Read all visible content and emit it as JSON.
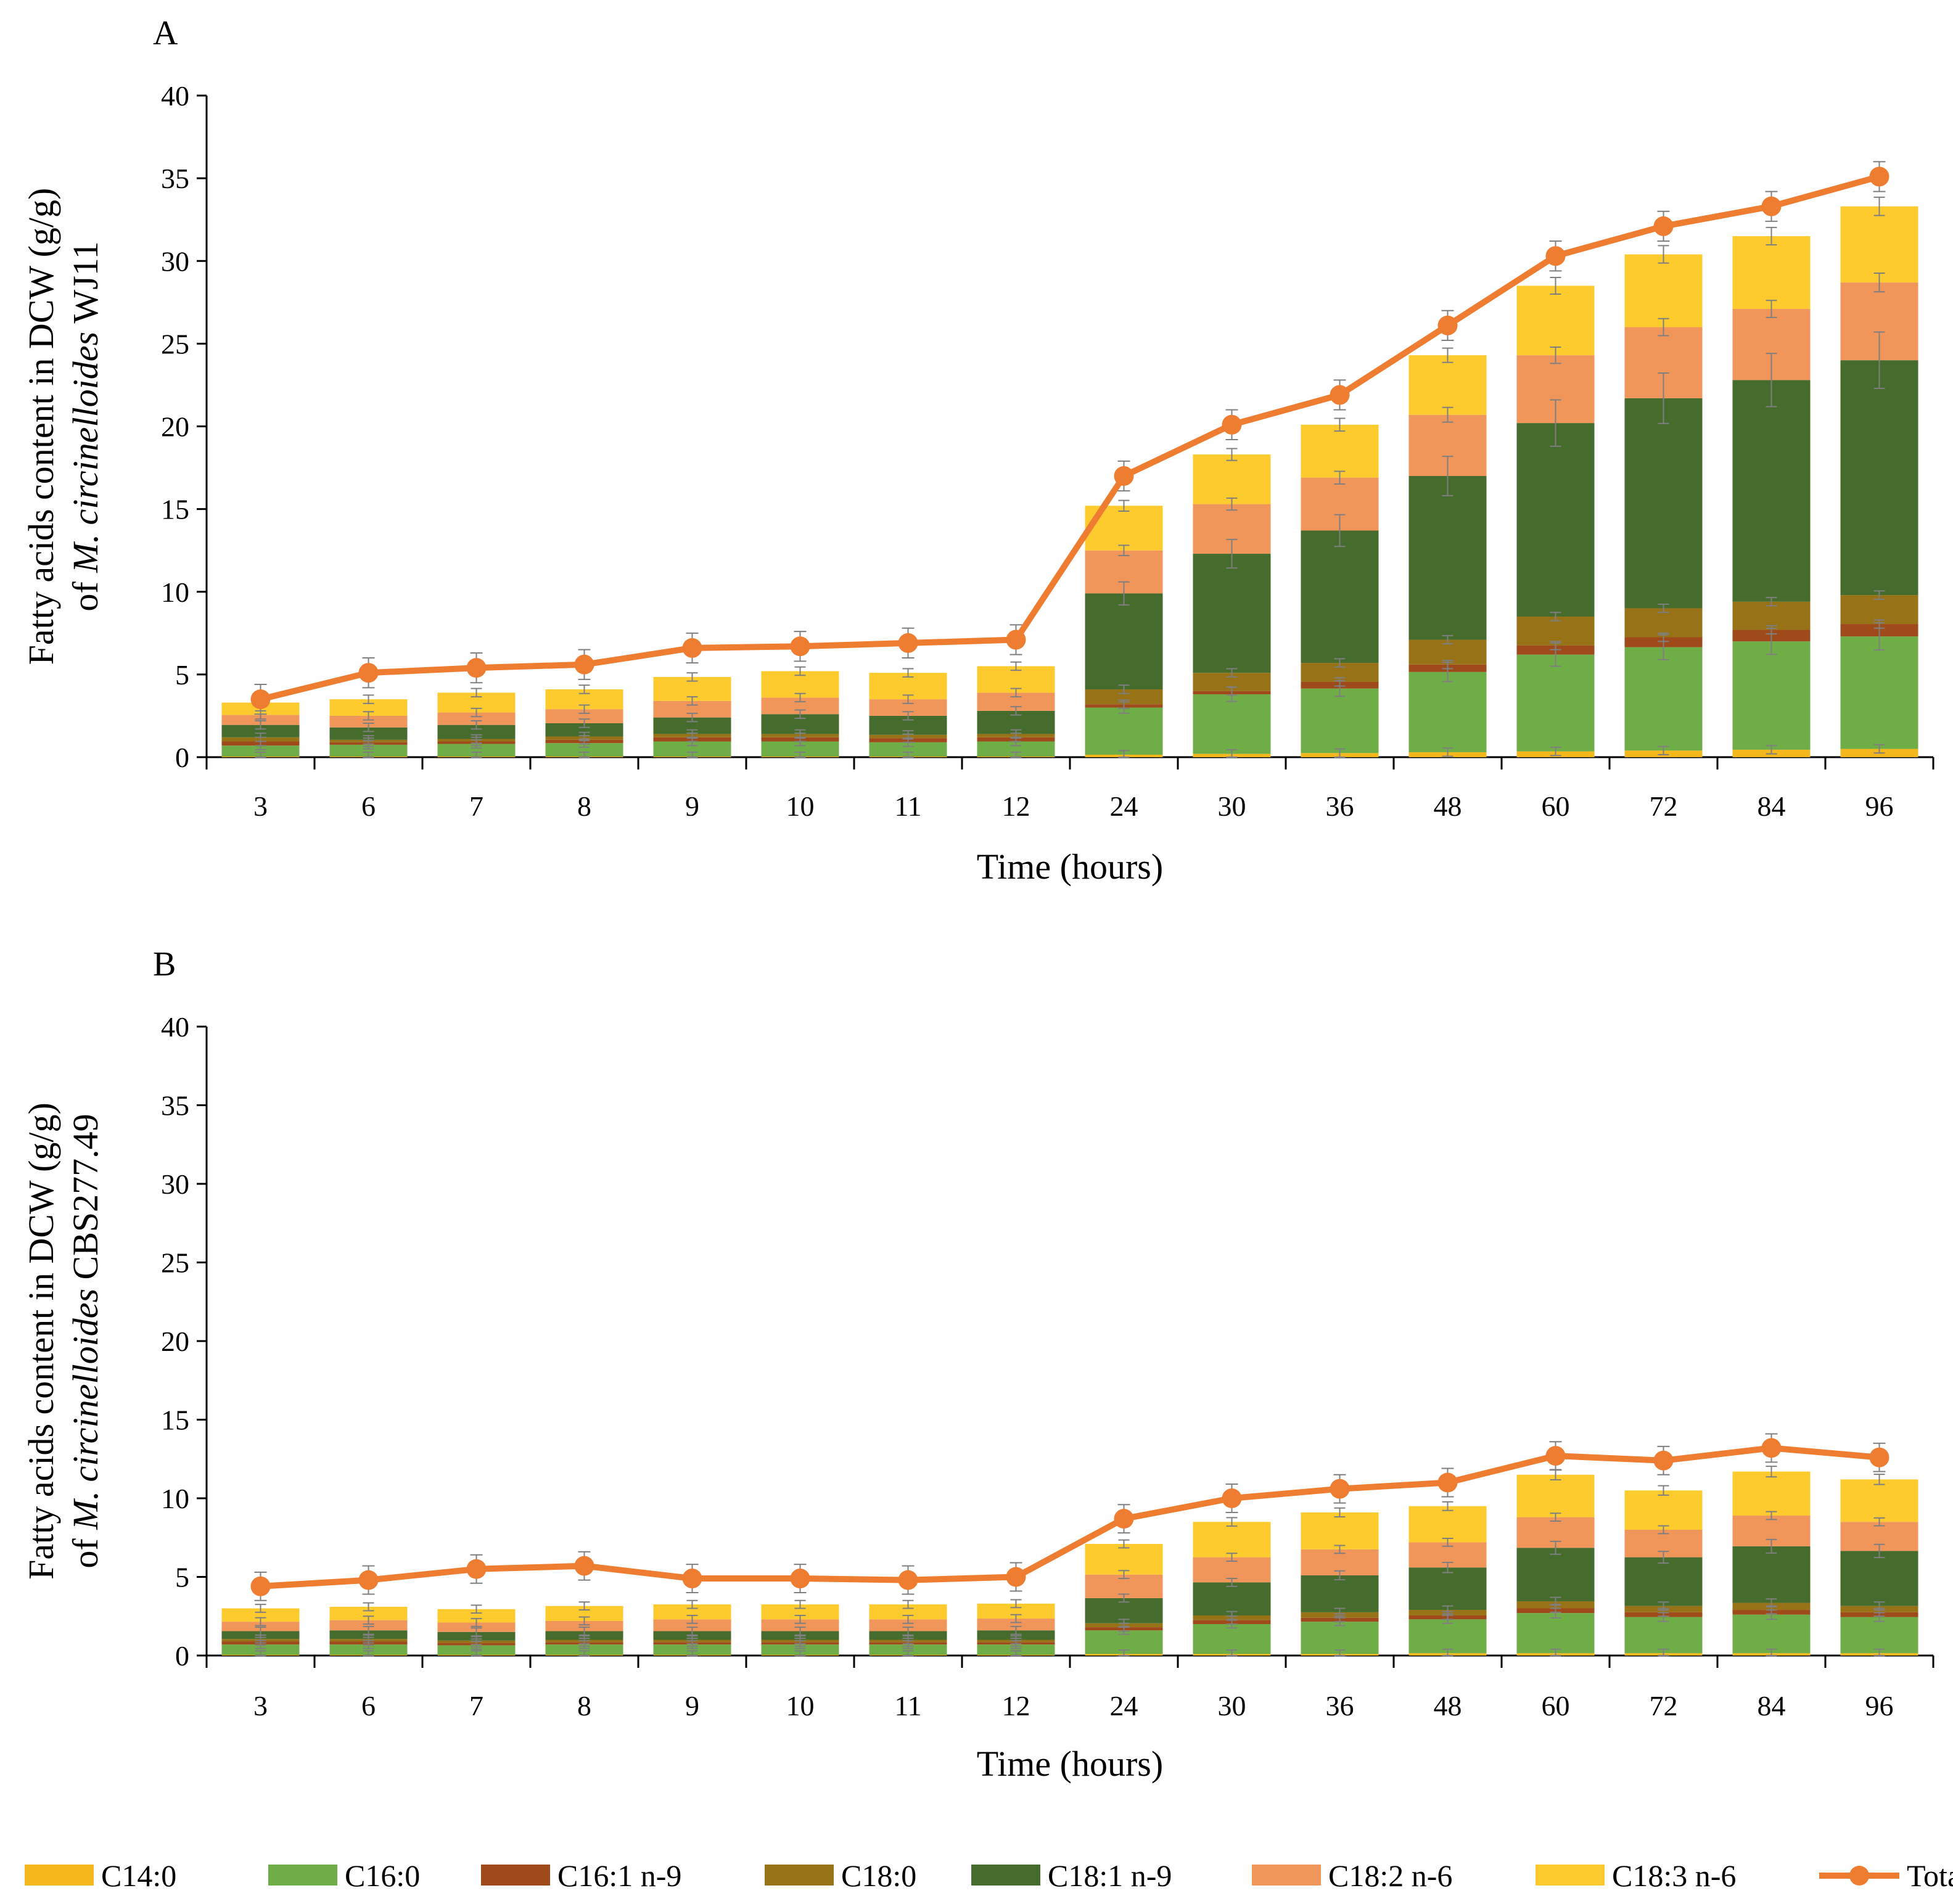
{
  "legend": [
    {
      "key": "c14",
      "label": "C14:0",
      "color": "#f4b71c",
      "kind": "bar"
    },
    {
      "key": "c16",
      "label": "C16:0",
      "color": "#6fad47",
      "kind": "bar"
    },
    {
      "key": "c161",
      "label": "C16:1 n-9",
      "color": "#9e4a1b",
      "kind": "bar"
    },
    {
      "key": "c18",
      "label": "C18:0",
      "color": "#977216",
      "kind": "bar"
    },
    {
      "key": "c181",
      "label": "C18:1 n-9",
      "color": "#456c2c",
      "kind": "bar"
    },
    {
      "key": "c182",
      "label": "C18:2 n-6",
      "color": "#f1965b",
      "kind": "bar"
    },
    {
      "key": "c183",
      "label": "C18:3 n-6",
      "color": "#fecb2f",
      "kind": "bar"
    },
    {
      "key": "total",
      "label": "Total fatty acids",
      "color": "#ee7d31",
      "kind": "line"
    }
  ],
  "chart_data": [
    {
      "panel": "A",
      "type": "bar",
      "stacked": true,
      "title": "",
      "ylabel_prefix": "Fatty acids content in DCW (g/g)",
      "ylabel_of": "of ",
      "ylabel_italic": "M. circinelloides",
      "ylabel_strain": " WJ11",
      "xlabel": "Time (hours)",
      "ylim": [
        0,
        40
      ],
      "yticks": [
        0,
        5,
        10,
        15,
        20,
        25,
        30,
        35,
        40
      ],
      "categories": [
        "3",
        "6",
        "7",
        "8",
        "9",
        "10",
        "11",
        "12",
        "24",
        "30",
        "36",
        "48",
        "60",
        "72",
        "84",
        "96"
      ],
      "series": [
        {
          "name": "C14:0",
          "values": [
            0.05,
            0.05,
            0.05,
            0.05,
            0.05,
            0.05,
            0.05,
            0.05,
            0.15,
            0.2,
            0.25,
            0.3,
            0.35,
            0.4,
            0.45,
            0.5
          ]
        },
        {
          "name": "C16:0",
          "values": [
            0.65,
            0.7,
            0.75,
            0.8,
            0.9,
            0.9,
            0.85,
            0.9,
            2.85,
            3.6,
            3.9,
            4.85,
            5.85,
            6.25,
            6.55,
            6.8
          ]
        },
        {
          "name": "C16:1 n-9",
          "values": [
            0.25,
            0.15,
            0.15,
            0.2,
            0.25,
            0.25,
            0.25,
            0.25,
            0.2,
            0.2,
            0.4,
            0.45,
            0.55,
            0.6,
            0.7,
            0.75
          ]
        },
        {
          "name": "C18:0",
          "values": [
            0.25,
            0.15,
            0.15,
            0.2,
            0.2,
            0.2,
            0.2,
            0.2,
            0.9,
            1.1,
            1.15,
            1.5,
            1.75,
            1.75,
            1.7,
            1.75
          ]
        },
        {
          "name": "C18:1 n-9",
          "values": [
            0.75,
            0.75,
            0.85,
            0.8,
            1.0,
            1.2,
            1.15,
            1.4,
            5.8,
            7.2,
            8.0,
            9.9,
            11.7,
            12.7,
            13.4,
            14.2
          ]
        },
        {
          "name": "C18:2 n-6",
          "values": [
            0.6,
            0.7,
            0.75,
            0.85,
            1.0,
            1.0,
            1.0,
            1.1,
            2.6,
            3.0,
            3.2,
            3.7,
            4.1,
            4.3,
            4.3,
            4.7
          ]
        },
        {
          "name": "C18:3 n-6",
          "values": [
            0.75,
            1.0,
            1.2,
            1.2,
            1.45,
            1.6,
            1.6,
            1.6,
            2.7,
            3.0,
            3.2,
            3.6,
            4.2,
            4.4,
            4.4,
            4.6
          ]
        }
      ],
      "line": {
        "name": "Total fatty acids",
        "values": [
          3.5,
          5.1,
          5.4,
          5.6,
          6.6,
          6.7,
          6.9,
          7.1,
          17.0,
          20.1,
          21.9,
          26.1,
          30.3,
          32.1,
          33.3,
          35.1
        ]
      }
    },
    {
      "panel": "B",
      "type": "bar",
      "stacked": true,
      "title": "",
      "ylabel_prefix": "Fatty acids content in DCW (g/g)",
      "ylabel_of": "of ",
      "ylabel_italic": "M. circinelloides",
      "ylabel_strain": " CBS277.49",
      "xlabel": "Time (hours)",
      "ylim": [
        0,
        40
      ],
      "yticks": [
        0,
        5,
        10,
        15,
        20,
        25,
        30,
        35,
        40
      ],
      "categories": [
        "3",
        "6",
        "7",
        "8",
        "9",
        "10",
        "11",
        "12",
        "24",
        "30",
        "36",
        "48",
        "60",
        "72",
        "84",
        "96"
      ],
      "series": [
        {
          "name": "C14:0",
          "values": [
            0.05,
            0.05,
            0.05,
            0.05,
            0.05,
            0.05,
            0.05,
            0.05,
            0.1,
            0.1,
            0.1,
            0.15,
            0.15,
            0.15,
            0.15,
            0.15
          ]
        },
        {
          "name": "C16:0",
          "values": [
            0.65,
            0.65,
            0.6,
            0.65,
            0.65,
            0.65,
            0.65,
            0.65,
            1.5,
            1.9,
            2.05,
            2.15,
            2.55,
            2.3,
            2.45,
            2.3
          ]
        },
        {
          "name": "C16:1 n-9",
          "values": [
            0.2,
            0.2,
            0.15,
            0.15,
            0.15,
            0.15,
            0.15,
            0.15,
            0.2,
            0.25,
            0.25,
            0.25,
            0.3,
            0.3,
            0.3,
            0.3
          ]
        },
        {
          "name": "C18:0",
          "values": [
            0.15,
            0.15,
            0.15,
            0.15,
            0.15,
            0.15,
            0.15,
            0.15,
            0.25,
            0.3,
            0.35,
            0.35,
            0.45,
            0.4,
            0.45,
            0.4
          ]
        },
        {
          "name": "C18:1 n-9",
          "values": [
            0.5,
            0.55,
            0.55,
            0.55,
            0.55,
            0.55,
            0.55,
            0.6,
            1.6,
            2.1,
            2.35,
            2.7,
            3.4,
            3.1,
            3.6,
            3.5
          ]
        },
        {
          "name": "C18:2 n-6",
          "values": [
            0.6,
            0.65,
            0.6,
            0.65,
            0.75,
            0.75,
            0.75,
            0.75,
            1.5,
            1.6,
            1.65,
            1.6,
            1.95,
            1.75,
            1.95,
            1.85
          ]
        },
        {
          "name": "C18:3 n-6",
          "values": [
            0.85,
            0.85,
            0.85,
            0.95,
            0.95,
            0.95,
            0.95,
            0.95,
            1.95,
            2.25,
            2.35,
            2.3,
            2.7,
            2.5,
            2.8,
            2.7
          ]
        }
      ],
      "line": {
        "name": "Total fatty acids",
        "values": [
          4.4,
          4.8,
          5.5,
          5.7,
          4.9,
          4.9,
          4.8,
          5.0,
          8.7,
          10.0,
          10.6,
          11.0,
          12.7,
          12.4,
          13.2,
          12.6
        ]
      }
    }
  ]
}
